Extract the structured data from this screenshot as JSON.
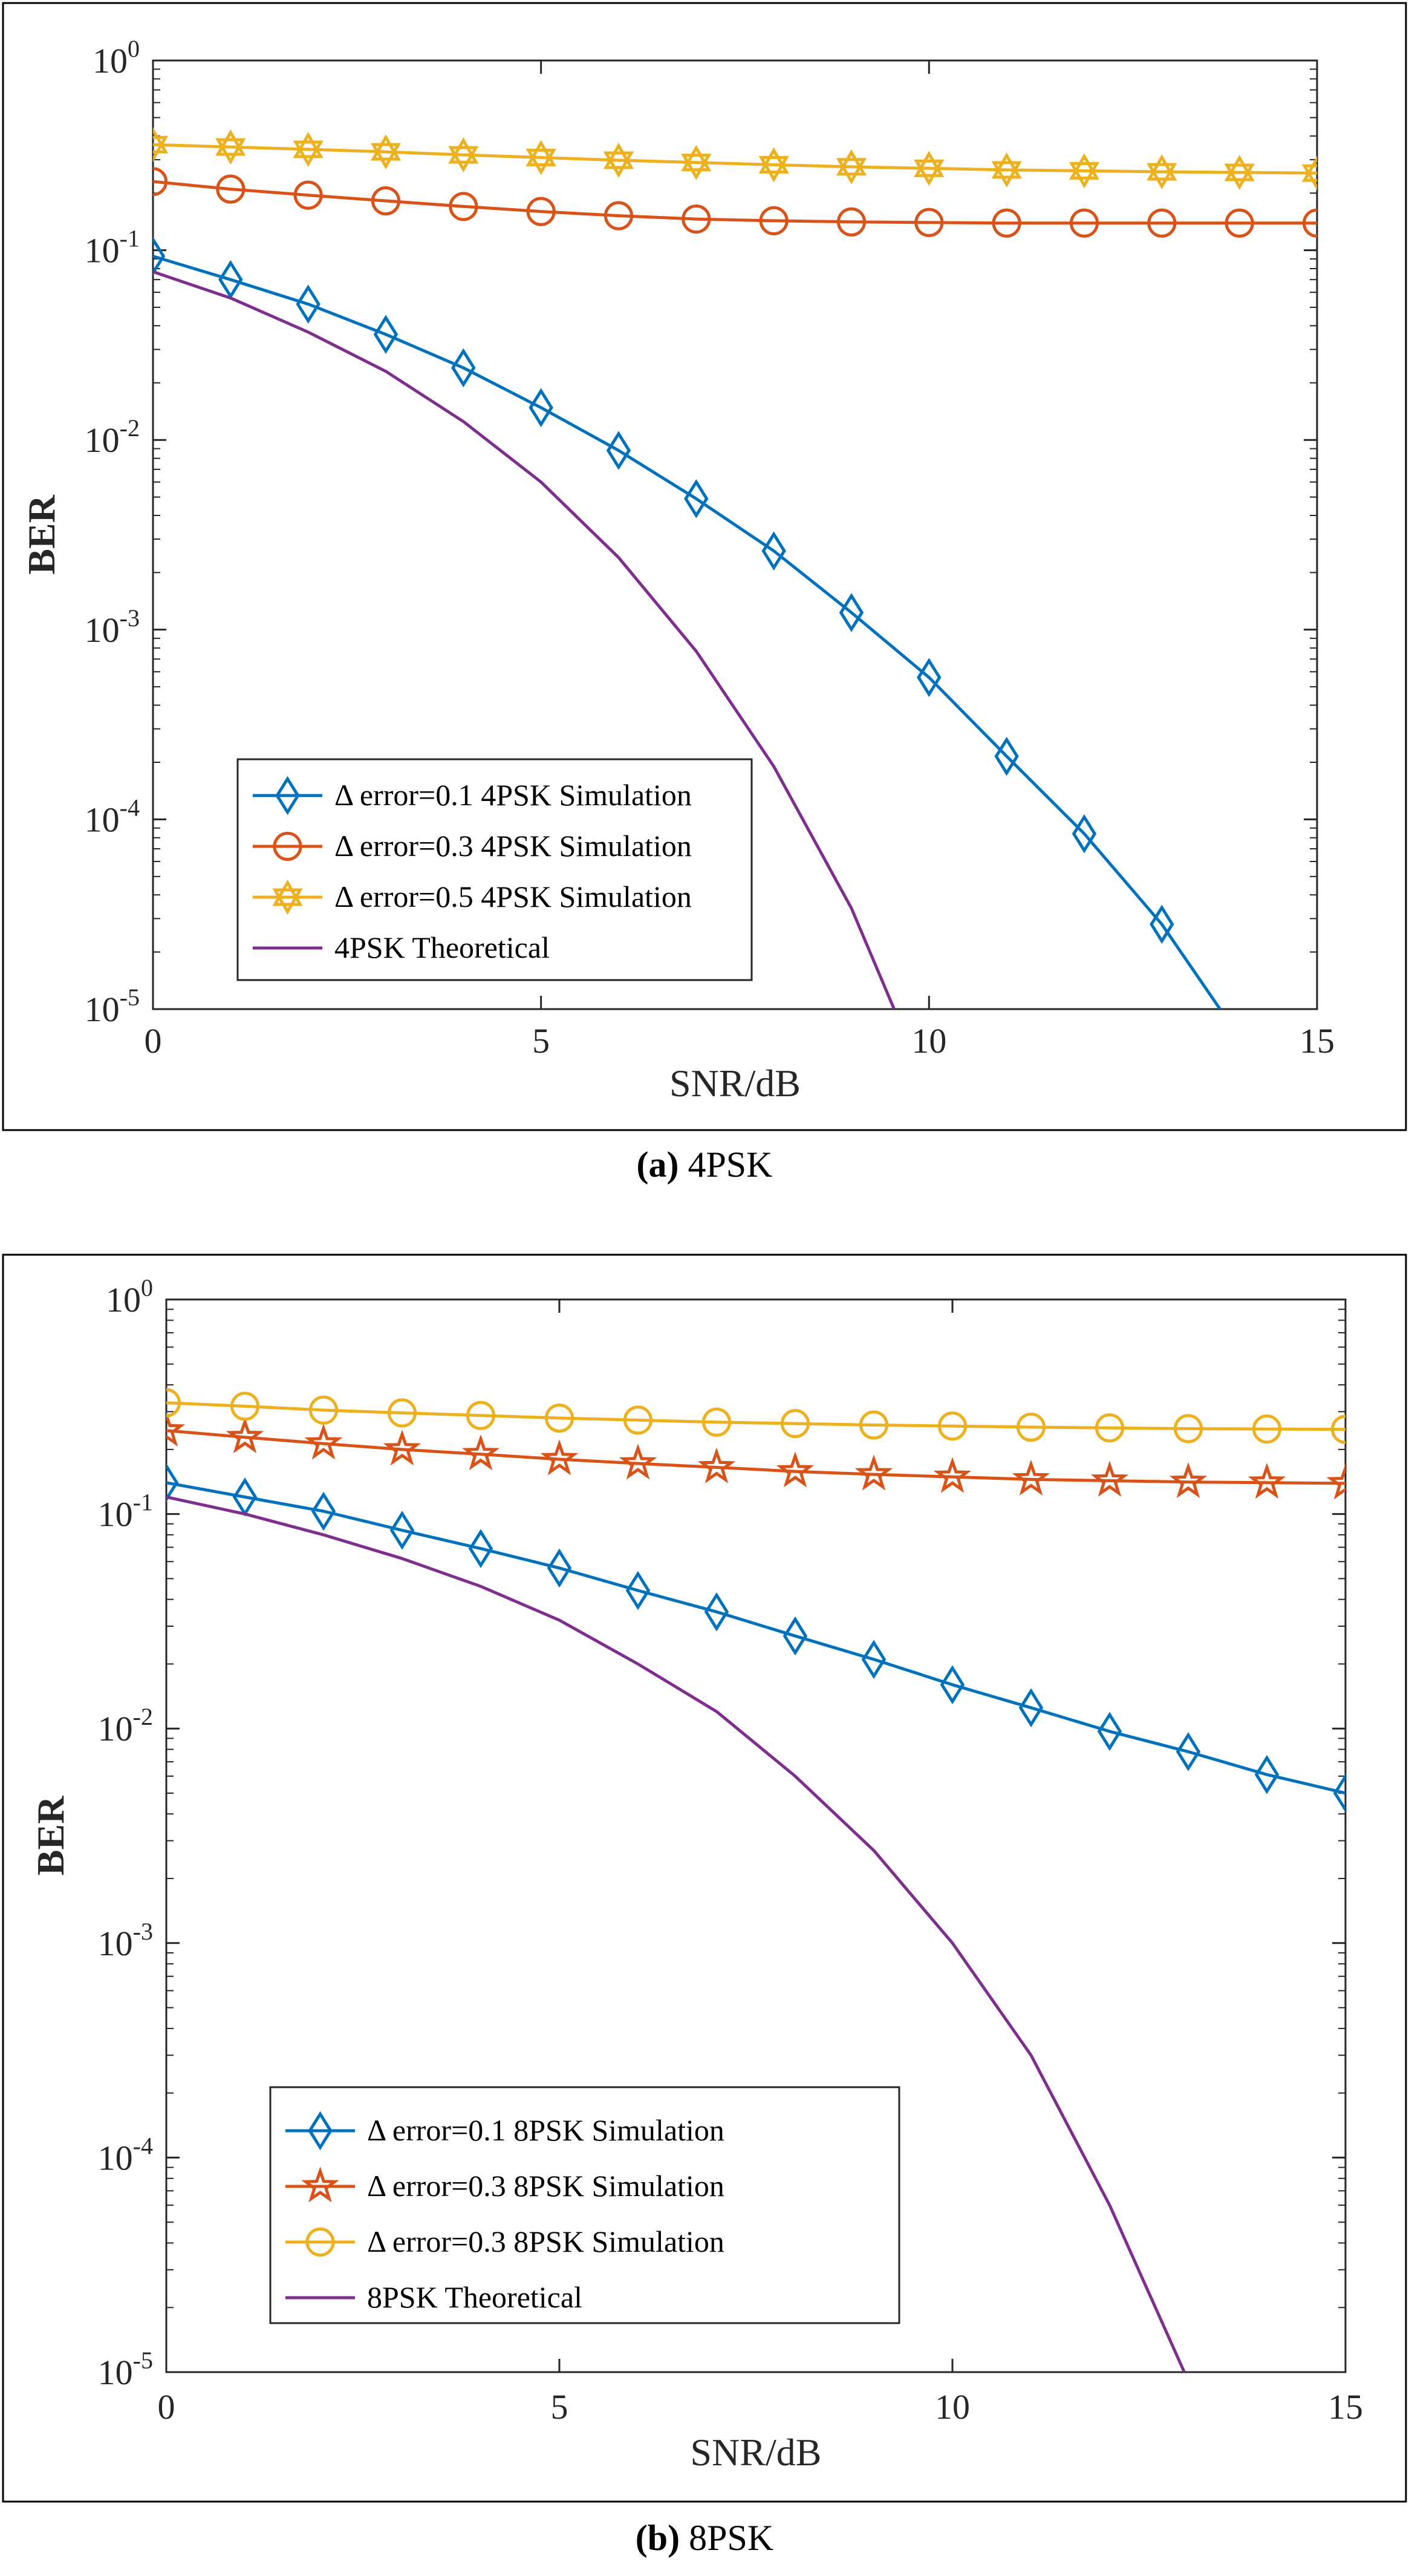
{
  "chart_data": [
    {
      "type": "line",
      "caption": {
        "letter": "(a)",
        "text": "4PSK"
      },
      "xlabel": "SNR/dB",
      "ylabel": "BER",
      "xlim": [
        0,
        15
      ],
      "ylim": [
        1e-05,
        1
      ],
      "yscale": "log",
      "grid": false,
      "legend_position": "bottom-left",
      "x_ticks": [
        "0",
        "5",
        "10",
        "15"
      ],
      "y_ticks": [
        {
          "base": "10",
          "exp": "0"
        },
        {
          "base": "10",
          "exp": "-1"
        },
        {
          "base": "10",
          "exp": "-2"
        },
        {
          "base": "10",
          "exp": "-3"
        },
        {
          "base": "10",
          "exp": "-4"
        },
        {
          "base": "10",
          "exp": "-5"
        }
      ],
      "series": [
        {
          "name": "Δ error=0.1  4PSK Simulation",
          "color": "#0072BD",
          "marker": "diamond",
          "x": [
            0,
            1,
            2,
            3,
            4,
            5,
            6,
            7,
            8,
            9,
            10,
            11,
            12,
            13,
            13.75
          ],
          "y": [
            0.093,
            0.07,
            0.052,
            0.036,
            0.024,
            0.0148,
            0.0088,
            0.0049,
            0.0026,
            0.00123,
            0.00056,
            0.000215,
            8.4e-05,
            2.8e-05,
            1e-05
          ],
          "marker_x": [
            0,
            1,
            2,
            3,
            4,
            5,
            6,
            7,
            8,
            9,
            10,
            11,
            12,
            13
          ]
        },
        {
          "name": "Δ error=0.3 4PSK Simulation",
          "color": "#D95319",
          "marker": "circle",
          "x": [
            0,
            1,
            2,
            3,
            4,
            5,
            6,
            7,
            8,
            9,
            10,
            11,
            12,
            13,
            14,
            15
          ],
          "y": [
            0.23,
            0.21,
            0.195,
            0.182,
            0.17,
            0.16,
            0.152,
            0.146,
            0.143,
            0.141,
            0.14,
            0.139,
            0.139,
            0.139,
            0.139,
            0.139
          ]
        },
        {
          "name": "Δ error=0.5 4PSK Simulation",
          "color": "#EDB120",
          "marker": "hexagram",
          "x": [
            0,
            1,
            2,
            3,
            4,
            5,
            6,
            7,
            8,
            9,
            10,
            11,
            12,
            13,
            14,
            15
          ],
          "y": [
            0.36,
            0.35,
            0.34,
            0.33,
            0.318,
            0.308,
            0.298,
            0.29,
            0.282,
            0.275,
            0.27,
            0.265,
            0.262,
            0.259,
            0.257,
            0.255
          ]
        },
        {
          "name": "4PSK Theoretical",
          "color": "#7E2F8E",
          "marker": "none",
          "x": [
            0,
            1,
            2,
            3,
            4,
            5,
            6,
            7,
            8,
            9,
            9.55
          ],
          "y": [
            0.077,
            0.056,
            0.037,
            0.023,
            0.0125,
            0.006,
            0.0024,
            0.00077,
            0.00019,
            3.4e-05,
            1e-05
          ]
        }
      ]
    },
    {
      "type": "line",
      "caption": {
        "letter": "(b)",
        "text": "8PSK"
      },
      "xlabel": "SNR/dB",
      "ylabel": "BER",
      "xlim": [
        0,
        15
      ],
      "ylim": [
        1e-05,
        1
      ],
      "yscale": "log",
      "grid": false,
      "legend_position": "bottom-left",
      "x_ticks": [
        "0",
        "5",
        "10",
        "15"
      ],
      "y_ticks": [
        {
          "base": "10",
          "exp": "0"
        },
        {
          "base": "10",
          "exp": "-1"
        },
        {
          "base": "10",
          "exp": "-2"
        },
        {
          "base": "10",
          "exp": "-3"
        },
        {
          "base": "10",
          "exp": "-4"
        },
        {
          "base": "10",
          "exp": "-5"
        }
      ],
      "series": [
        {
          "name": "Δ error=0.1 8PSK Simulation",
          "color": "#0072BD",
          "marker": "diamond",
          "x": [
            0,
            1,
            2,
            3,
            4,
            5,
            6,
            7,
            8,
            9,
            10,
            11,
            12,
            13,
            14,
            15
          ],
          "y": [
            0.14,
            0.12,
            0.103,
            0.084,
            0.069,
            0.056,
            0.044,
            0.035,
            0.027,
            0.021,
            0.016,
            0.0125,
            0.0097,
            0.0078,
            0.0061,
            0.005
          ]
        },
        {
          "name": "Δ error=0.3 8PSK Simulation",
          "color": "#D95319",
          "marker": "pentagram",
          "x": [
            0,
            1,
            2,
            3,
            4,
            5,
            6,
            7,
            8,
            9,
            10,
            11,
            12,
            13,
            14,
            15
          ],
          "y": [
            0.245,
            0.228,
            0.213,
            0.2,
            0.19,
            0.18,
            0.172,
            0.165,
            0.158,
            0.153,
            0.149,
            0.145,
            0.143,
            0.141,
            0.14,
            0.139
          ]
        },
        {
          "name": "Δ error=0.3 8PSK Simulation",
          "color": "#EDB120",
          "marker": "circle",
          "x": [
            0,
            1,
            2,
            3,
            4,
            5,
            6,
            7,
            8,
            9,
            10,
            11,
            12,
            13,
            14,
            15
          ],
          "y": [
            0.33,
            0.318,
            0.305,
            0.296,
            0.288,
            0.28,
            0.274,
            0.268,
            0.264,
            0.26,
            0.257,
            0.254,
            0.252,
            0.25,
            0.249,
            0.248
          ]
        },
        {
          "name": "8PSK Theoretical",
          "color": "#7E2F8E",
          "marker": "none",
          "x": [
            0,
            1,
            2,
            3,
            4,
            5,
            6,
            7,
            8,
            9,
            10,
            11,
            12,
            12.95
          ],
          "y": [
            0.12,
            0.1,
            0.08,
            0.062,
            0.046,
            0.032,
            0.02,
            0.012,
            0.006,
            0.0027,
            0.001,
            0.0003,
            6e-05,
            1e-05
          ]
        }
      ]
    }
  ]
}
